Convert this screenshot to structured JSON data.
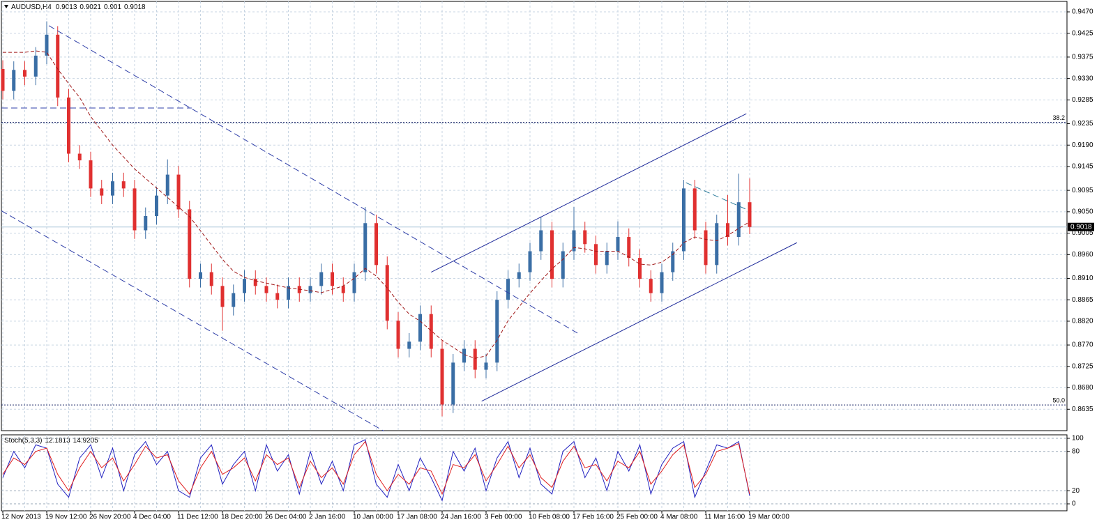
{
  "chart_data": [
    {
      "type": "candlestick",
      "title": "AUDUSD,H4",
      "last_ohlc": [
        0.9013,
        0.9021,
        0.901,
        0.9018
      ],
      "categories": [
        "12 Nov 2013",
        null,
        null,
        null,
        "19 Nov 12:00",
        null,
        null,
        null,
        "26 Nov 20:00",
        null,
        null,
        null,
        "4 Dec 04:00",
        null,
        null,
        null,
        "11 Dec 12:00",
        null,
        null,
        null,
        "18 Dec 20:00",
        null,
        null,
        null,
        "26 Dec 04:00",
        null,
        null,
        null,
        "2 Jan 16:00",
        null,
        null,
        null,
        "10 Jan 00:00",
        null,
        null,
        null,
        "17 Jan 08:00",
        null,
        null,
        null,
        "24 Jan 16:00",
        null,
        null,
        null,
        "3 Feb 00:00",
        null,
        null,
        null,
        "10 Feb 08:00",
        null,
        null,
        null,
        "17 Feb 16:00",
        null,
        null,
        null,
        "25 Feb 00:00",
        null,
        null,
        null,
        "4 Mar 08:00",
        null,
        null,
        null,
        "11 Mar 16:00",
        null,
        null,
        null,
        "19 Mar 00:00"
      ],
      "open": [
        0.935,
        0.9304,
        0.9348,
        0.9334,
        0.9378,
        0.9422,
        0.929,
        0.9172,
        0.9158,
        0.9099,
        0.9084,
        0.9114,
        0.9099,
        0.9011,
        0.9041,
        0.9084,
        0.9128,
        0.9055,
        0.8909,
        0.8923,
        0.8894,
        0.885,
        0.8879,
        0.8909,
        0.8894,
        0.8879,
        0.8865,
        0.8894,
        0.8879,
        0.8894,
        0.8923,
        0.8894,
        0.8879,
        0.8923,
        0.9026,
        0.8938,
        0.8821,
        0.8762,
        0.8777,
        0.8835,
        0.8762,
        0.8645,
        0.8733,
        0.8762,
        0.8718,
        0.8733,
        0.8865,
        0.8909,
        0.8923,
        0.8967,
        0.9011,
        0.8909,
        0.8967,
        0.9011,
        0.8982,
        0.8938,
        0.8967,
        0.8997,
        0.8953,
        0.8909,
        0.8879,
        0.8923,
        0.8967,
        0.9099,
        0.9011,
        0.8938,
        0.9026,
        0.8997,
        0.907
      ],
      "high": [
        0.9368,
        0.9366,
        0.9366,
        0.9396,
        0.945,
        0.944,
        0.9308,
        0.919,
        0.9176,
        0.9117,
        0.9132,
        0.9132,
        0.9117,
        0.9059,
        0.9102,
        0.916,
        0.9146,
        0.9073,
        0.8941,
        0.8941,
        0.8912,
        0.8897,
        0.8927,
        0.8927,
        0.8912,
        0.8897,
        0.8912,
        0.8912,
        0.8912,
        0.8941,
        0.8941,
        0.8912,
        0.8941,
        0.906,
        0.9044,
        0.8956,
        0.8839,
        0.8795,
        0.8853,
        0.8853,
        0.878,
        0.8751,
        0.878,
        0.878,
        0.8751,
        0.8883,
        0.8927,
        0.8941,
        0.8985,
        0.904,
        0.9029,
        0.8985,
        0.906,
        0.9029,
        0.9,
        0.8985,
        0.903,
        0.9015,
        0.8971,
        0.8927,
        0.8941,
        0.8985,
        0.9117,
        0.9117,
        0.9029,
        0.9044,
        0.9085,
        0.913,
        0.912
      ],
      "low": [
        0.9286,
        0.9286,
        0.9316,
        0.9316,
        0.936,
        0.9272,
        0.9154,
        0.914,
        0.9081,
        0.9066,
        0.9066,
        0.9081,
        0.8993,
        0.8993,
        0.9023,
        0.9066,
        0.9037,
        0.8891,
        0.8891,
        0.8876,
        0.88,
        0.8832,
        0.8861,
        0.8876,
        0.8861,
        0.8847,
        0.8847,
        0.8861,
        0.8861,
        0.8876,
        0.8876,
        0.8861,
        0.8861,
        0.8905,
        0.892,
        0.8803,
        0.8744,
        0.8744,
        0.8759,
        0.8744,
        0.862,
        0.8627,
        0.8715,
        0.87,
        0.87,
        0.8715,
        0.8847,
        0.8891,
        0.8905,
        0.8949,
        0.8891,
        0.8891,
        0.8949,
        0.8964,
        0.892,
        0.892,
        0.8949,
        0.8935,
        0.8891,
        0.8861,
        0.8861,
        0.8905,
        0.8949,
        0.8993,
        0.892,
        0.892,
        0.8979,
        0.8979,
        0.9003
      ],
      "close": [
        0.9304,
        0.9348,
        0.9334,
        0.9378,
        0.9422,
        0.929,
        0.9172,
        0.9158,
        0.9099,
        0.9084,
        0.9114,
        0.9099,
        0.9011,
        0.9041,
        0.9084,
        0.9128,
        0.9055,
        0.8909,
        0.8923,
        0.8894,
        0.885,
        0.8879,
        0.8909,
        0.8894,
        0.8879,
        0.8865,
        0.8894,
        0.8879,
        0.8894,
        0.8923,
        0.8894,
        0.8879,
        0.8923,
        0.9026,
        0.8938,
        0.8821,
        0.8762,
        0.8777,
        0.8835,
        0.8762,
        0.8645,
        0.8733,
        0.8762,
        0.8718,
        0.8733,
        0.8865,
        0.8909,
        0.8923,
        0.8967,
        0.9011,
        0.8909,
        0.8967,
        0.9011,
        0.8982,
        0.8938,
        0.8967,
        0.8997,
        0.8953,
        0.8909,
        0.8879,
        0.8923,
        0.8967,
        0.9099,
        0.9011,
        0.8938,
        0.9026,
        0.8997,
        0.907,
        0.9018
      ],
      "up_color": "#3a6ea5",
      "down_color": "#e03030",
      "ma": {
        "color": "#a01818",
        "values": [
          0.9385,
          0.9385,
          0.9385,
          0.9388,
          0.9385,
          0.935,
          0.9319,
          0.929,
          0.925,
          0.922,
          0.919,
          0.9165,
          0.914,
          0.912,
          0.91,
          0.908,
          0.906,
          0.904,
          0.901,
          0.898,
          0.895,
          0.8925,
          0.8912,
          0.8905,
          0.89,
          0.8895,
          0.889,
          0.8887,
          0.8884,
          0.888,
          0.8887,
          0.8894,
          0.891,
          0.8931,
          0.8915,
          0.889,
          0.886,
          0.8835,
          0.882,
          0.88,
          0.878,
          0.8765,
          0.875,
          0.8742,
          0.8747,
          0.878,
          0.8821,
          0.885,
          0.8879,
          0.8905,
          0.893,
          0.895,
          0.8975,
          0.8972,
          0.8967,
          0.8967,
          0.8967,
          0.8955,
          0.894,
          0.8938,
          0.8944,
          0.896,
          0.8985,
          0.8997,
          0.8992,
          0.8989,
          0.9,
          0.9015,
          0.9029
        ]
      },
      "trendlines": [
        {
          "x": [
            4.19,
            52.4
          ],
          "y": [
            0.9441,
            0.8794
          ],
          "dash": true,
          "color": "#2f3fa8"
        },
        {
          "x": [
            -0.13,
            34.7
          ],
          "y": [
            0.9052,
            0.8589
          ],
          "dash": true,
          "color": "#2f3fa8"
        },
        {
          "x": [
            -0.13,
            17.2
          ],
          "y": [
            0.9268,
            0.9268
          ],
          "dash": true,
          "color": "#2f3fa8"
        },
        {
          "x": [
            39.0,
            67.7
          ],
          "y": [
            0.8923,
            0.9256
          ],
          "dash": false,
          "color": "#1e2a9a"
        },
        {
          "x": [
            43.6,
            72.3
          ],
          "y": [
            0.8652,
            0.8985
          ],
          "dash": false,
          "color": "#1e2a9a"
        },
        {
          "x": [
            62.2,
            67.7
          ],
          "y": [
            0.9111,
            0.9055
          ],
          "dash": true,
          "color": "#2a7a9a"
        }
      ],
      "levels": [
        {
          "label": "38.2",
          "price": 0.9238
        },
        {
          "label": "50.0",
          "price": 0.8644
        }
      ],
      "level_color": "#1e2a6a",
      "ylim": [
        0.859,
        0.9492
      ],
      "yticks": [
        {
          "value": 0.947,
          "label": "0.9470"
        },
        0.9425,
        0.9375,
        {
          "value": 0.933,
          "label": "0.9330"
        },
        0.9285,
        0.9235,
        {
          "value": 0.919,
          "label": "0.9190"
        },
        0.9145,
        0.9095,
        {
          "value": 0.905,
          "label": "0.9050"
        },
        0.9005,
        {
          "value": 0.896,
          "label": "0.8960"
        },
        {
          "value": 0.891,
          "label": "0.8910"
        },
        0.8865,
        {
          "value": 0.882,
          "label": "0.8820"
        },
        {
          "value": 0.877,
          "label": "0.8770"
        },
        0.8725,
        {
          "value": 0.868,
          "label": "0.8680"
        },
        0.8635
      ],
      "grid": true
    },
    {
      "type": "line",
      "title": "Stoch(5,3,3)",
      "series": [
        {
          "color": "#2020c0",
          "values": [
            40,
            80,
            55,
            90,
            85,
            30,
            10,
            70,
            90,
            40,
            85,
            20,
            75,
            95,
            60,
            80,
            20,
            10,
            70,
            90,
            30,
            60,
            80,
            20,
            90,
            50,
            75,
            15,
            80,
            30,
            65,
            20,
            90,
            98,
            30,
            10,
            60,
            20,
            70,
            40,
            5,
            80,
            50,
            85,
            20,
            70,
            95,
            40,
            85,
            30,
            15,
            80,
            95,
            40,
            70,
            20,
            80,
            50,
            90,
            15,
            60,
            85,
            95,
            10,
            50,
            90,
            85,
            95,
            12.1813
          ]
        },
        {
          "color": "#e02020",
          "values": [
            45,
            70,
            60,
            80,
            85,
            45,
            20,
            55,
            80,
            55,
            70,
            35,
            60,
            88,
            70,
            75,
            35,
            15,
            55,
            80,
            45,
            55,
            70,
            35,
            75,
            60,
            70,
            25,
            65,
            40,
            55,
            30,
            75,
            95,
            45,
            20,
            45,
            30,
            55,
            50,
            15,
            60,
            55,
            75,
            35,
            60,
            88,
            55,
            75,
            40,
            25,
            65,
            88,
            55,
            60,
            35,
            65,
            55,
            80,
            30,
            50,
            75,
            90,
            25,
            45,
            80,
            85,
            92,
            14.9205
          ]
        }
      ],
      "ylim": [
        -10.6,
        105.3
      ],
      "yticks": [
        100,
        80,
        20,
        0
      ],
      "grid": true
    }
  ]
}
